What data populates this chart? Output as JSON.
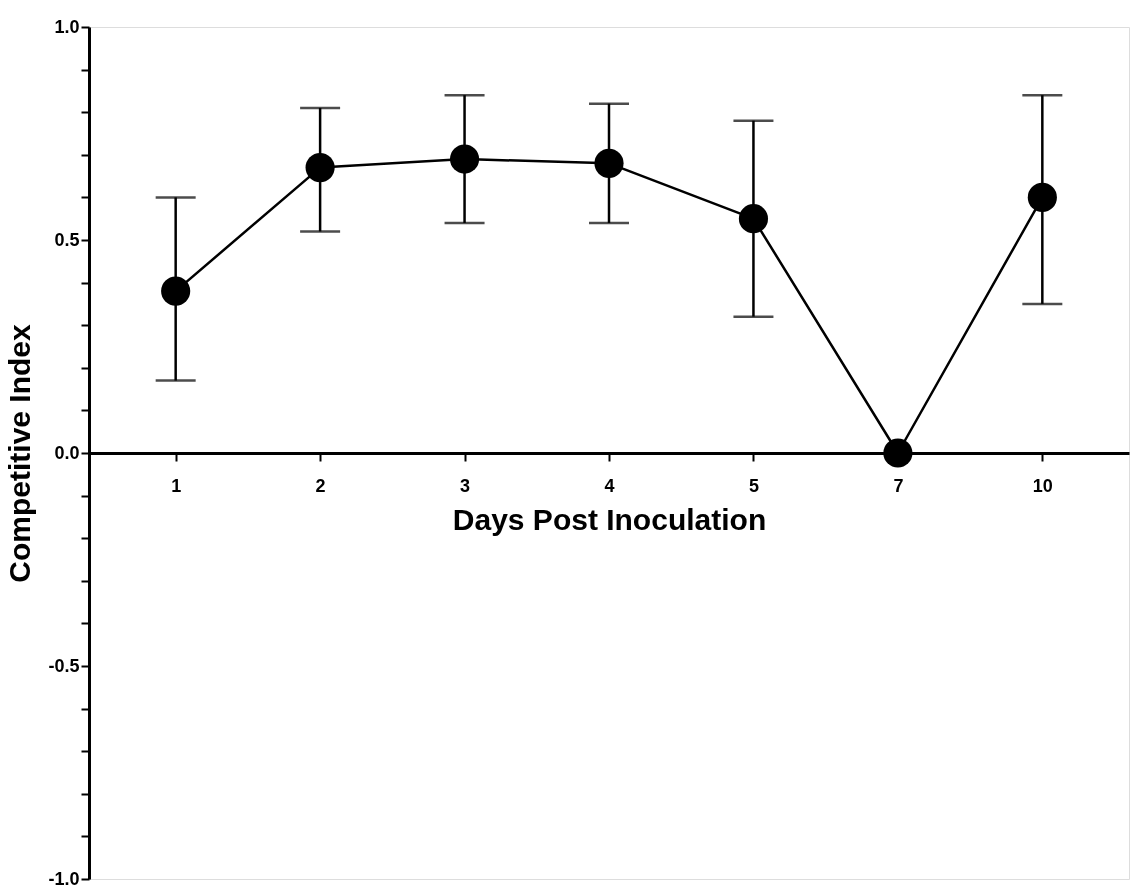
{
  "chart_data": {
    "type": "line",
    "xlabel": "Days Post Inoculation",
    "ylabel": "Competitive Index",
    "categories": [
      "1",
      "2",
      "3",
      "4",
      "5",
      "7",
      "10"
    ],
    "series": [
      {
        "color": "#000000",
        "values": [
          0.38,
          0.67,
          0.69,
          0.68,
          0.55,
          0.0,
          0.6
        ],
        "errors": [
          [
            0.17,
            0.6
          ],
          [
            0.52,
            0.81
          ],
          [
            0.54,
            0.84
          ],
          [
            0.54,
            0.82
          ],
          [
            0.32,
            0.78
          ],
          null,
          [
            0.35,
            0.84
          ]
        ]
      }
    ],
    "ylim": [
      -1.0,
      1.0
    ],
    "yticks": [
      {
        "value": -1.0,
        "label": "-1.0"
      },
      {
        "value": -0.9,
        "label": null
      },
      {
        "value": -0.8,
        "label": null
      },
      {
        "value": -0.7,
        "label": null
      },
      {
        "value": -0.6,
        "label": null
      },
      {
        "value": -0.5,
        "label": "-0.5"
      },
      {
        "value": -0.4,
        "label": null
      },
      {
        "value": -0.3,
        "label": null
      },
      {
        "value": -0.2,
        "label": null
      },
      {
        "value": -0.1,
        "label": null
      },
      {
        "value": 0.0,
        "label": "0.0"
      },
      {
        "value": 0.1,
        "label": null
      },
      {
        "value": 0.2,
        "label": null
      },
      {
        "value": 0.3,
        "label": null
      },
      {
        "value": 0.4,
        "label": null
      },
      {
        "value": 0.5,
        "label": "0.5"
      },
      {
        "value": 0.6,
        "label": null
      },
      {
        "value": 0.7,
        "label": null
      },
      {
        "value": 0.8,
        "label": null
      },
      {
        "value": 0.9,
        "label": null
      },
      {
        "value": 1.0,
        "label": "1.0"
      }
    ],
    "marker": "circle",
    "line_style": "solid",
    "grid": false
  }
}
